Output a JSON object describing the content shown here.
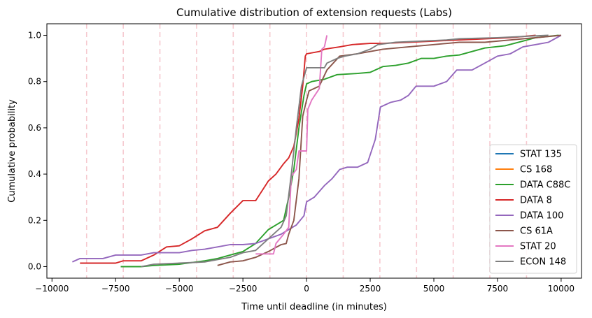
{
  "chart_data": {
    "type": "line",
    "title": "Cumulative distribution of extension requests (Labs)",
    "xlabel": "Time until deadline (in minutes)",
    "ylabel": "Cumulative probability",
    "xlim": [
      -10200,
      10800
    ],
    "ylim": [
      -0.05,
      1.05
    ],
    "xticks": [
      -10000,
      -7500,
      -5000,
      -2500,
      0,
      2500,
      5000,
      7500,
      10000
    ],
    "xtick_labels": [
      "−10000",
      "−7500",
      "−5000",
      "−2500",
      "0",
      "2500",
      "5000",
      "7500",
      "10000"
    ],
    "yticks": [
      0.0,
      0.2,
      0.4,
      0.6,
      0.8,
      1.0
    ],
    "ytick_labels": [
      "0.0",
      "0.2",
      "0.4",
      "0.6",
      "0.8",
      "1.0"
    ],
    "grid": false,
    "legend_position": "lower-right",
    "reference_lines": {
      "x": [
        -8640,
        -7200,
        -5760,
        -4320,
        -2880,
        -1440,
        0,
        1440,
        2880,
        4320,
        5760,
        7200,
        8640
      ],
      "color": "#f6c9cf",
      "style": "dashed"
    },
    "series": [
      {
        "name": "STAT 135",
        "color": "#1f77b4",
        "points": []
      },
      {
        "name": "CS 168",
        "color": "#ff7f0e",
        "points": []
      },
      {
        "name": "DATA C88C",
        "color": "#2ca02c",
        "points": [
          [
            -7300,
            0.0
          ],
          [
            -6500,
            0.0
          ],
          [
            -6000,
            0.005
          ],
          [
            -5000,
            0.01
          ],
          [
            -4000,
            0.025
          ],
          [
            -3500,
            0.035
          ],
          [
            -3000,
            0.05
          ],
          [
            -2500,
            0.065
          ],
          [
            -2000,
            0.1
          ],
          [
            -1500,
            0.16
          ],
          [
            -1200,
            0.18
          ],
          [
            -900,
            0.2
          ],
          [
            -700,
            0.3
          ],
          [
            -500,
            0.42
          ],
          [
            -300,
            0.6
          ],
          [
            -100,
            0.74
          ],
          [
            0,
            0.79
          ],
          [
            200,
            0.8
          ],
          [
            700,
            0.81
          ],
          [
            1200,
            0.83
          ],
          [
            2000,
            0.835
          ],
          [
            2500,
            0.84
          ],
          [
            3000,
            0.865
          ],
          [
            3500,
            0.87
          ],
          [
            4000,
            0.88
          ],
          [
            4500,
            0.9
          ],
          [
            5000,
            0.9
          ],
          [
            5500,
            0.91
          ],
          [
            6000,
            0.915
          ],
          [
            6500,
            0.93
          ],
          [
            7000,
            0.945
          ],
          [
            7800,
            0.955
          ],
          [
            8500,
            0.975
          ],
          [
            9000,
            0.99
          ],
          [
            9900,
            1.0
          ]
        ]
      },
      {
        "name": "DATA 8",
        "color": "#d62728",
        "points": [
          [
            -8900,
            0.015
          ],
          [
            -7500,
            0.015
          ],
          [
            -7200,
            0.025
          ],
          [
            -6500,
            0.025
          ],
          [
            -6000,
            0.05
          ],
          [
            -5500,
            0.085
          ],
          [
            -5000,
            0.09
          ],
          [
            -4500,
            0.12
          ],
          [
            -4000,
            0.155
          ],
          [
            -3500,
            0.17
          ],
          [
            -3000,
            0.23
          ],
          [
            -2500,
            0.285
          ],
          [
            -2000,
            0.285
          ],
          [
            -1500,
            0.37
          ],
          [
            -1200,
            0.4
          ],
          [
            -900,
            0.445
          ],
          [
            -700,
            0.47
          ],
          [
            -500,
            0.52
          ],
          [
            -300,
            0.64
          ],
          [
            -150,
            0.78
          ],
          [
            -50,
            0.91
          ],
          [
            0,
            0.92
          ],
          [
            500,
            0.93
          ],
          [
            700,
            0.94
          ],
          [
            1000,
            0.945
          ],
          [
            1300,
            0.95
          ],
          [
            1800,
            0.96
          ],
          [
            2500,
            0.965
          ],
          [
            3000,
            0.965
          ],
          [
            4000,
            0.97
          ],
          [
            5000,
            0.975
          ],
          [
            6000,
            0.98
          ],
          [
            7000,
            0.985
          ],
          [
            8000,
            0.99
          ],
          [
            9000,
            1.0
          ]
        ]
      },
      {
        "name": "DATA 100",
        "color": "#9467bd",
        "points": [
          [
            -9200,
            0.02
          ],
          [
            -8900,
            0.035
          ],
          [
            -8000,
            0.035
          ],
          [
            -7500,
            0.05
          ],
          [
            -6500,
            0.05
          ],
          [
            -6000,
            0.06
          ],
          [
            -5000,
            0.06
          ],
          [
            -4500,
            0.07
          ],
          [
            -4000,
            0.075
          ],
          [
            -3500,
            0.085
          ],
          [
            -3000,
            0.095
          ],
          [
            -2500,
            0.095
          ],
          [
            -2000,
            0.1
          ],
          [
            -1500,
            0.12
          ],
          [
            -1000,
            0.14
          ],
          [
            -700,
            0.16
          ],
          [
            -400,
            0.18
          ],
          [
            -100,
            0.22
          ],
          [
            0,
            0.28
          ],
          [
            300,
            0.3
          ],
          [
            700,
            0.35
          ],
          [
            1000,
            0.38
          ],
          [
            1300,
            0.42
          ],
          [
            1600,
            0.43
          ],
          [
            2000,
            0.43
          ],
          [
            2400,
            0.45
          ],
          [
            2700,
            0.55
          ],
          [
            2900,
            0.69
          ],
          [
            3300,
            0.71
          ],
          [
            3700,
            0.72
          ],
          [
            4000,
            0.74
          ],
          [
            4300,
            0.78
          ],
          [
            5000,
            0.78
          ],
          [
            5500,
            0.8
          ],
          [
            5900,
            0.85
          ],
          [
            6500,
            0.85
          ],
          [
            7000,
            0.88
          ],
          [
            7500,
            0.91
          ],
          [
            8000,
            0.92
          ],
          [
            8500,
            0.95
          ],
          [
            9000,
            0.96
          ],
          [
            9500,
            0.97
          ],
          [
            10000,
            1.0
          ]
        ]
      },
      {
        "name": "CS 61A",
        "color": "#8c564b",
        "points": [
          [
            -3500,
            0.005
          ],
          [
            -3000,
            0.02
          ],
          [
            -2500,
            0.025
          ],
          [
            -2000,
            0.04
          ],
          [
            -1500,
            0.065
          ],
          [
            -1000,
            0.095
          ],
          [
            -800,
            0.1
          ],
          [
            -700,
            0.14
          ],
          [
            -500,
            0.2
          ],
          [
            -300,
            0.38
          ],
          [
            -150,
            0.65
          ],
          [
            0,
            0.72
          ],
          [
            100,
            0.76
          ],
          [
            500,
            0.78
          ],
          [
            800,
            0.85
          ],
          [
            1300,
            0.91
          ],
          [
            2000,
            0.92
          ],
          [
            2500,
            0.93
          ],
          [
            3000,
            0.94
          ],
          [
            4000,
            0.95
          ],
          [
            5000,
            0.96
          ],
          [
            6000,
            0.97
          ],
          [
            7000,
            0.97
          ],
          [
            8000,
            0.98
          ],
          [
            9000,
            0.99
          ],
          [
            10000,
            1.0
          ]
        ]
      },
      {
        "name": "STAT 20",
        "color": "#e377c2",
        "points": [
          [
            -2000,
            0.055
          ],
          [
            -1300,
            0.055
          ],
          [
            -1200,
            0.1
          ],
          [
            -900,
            0.14
          ],
          [
            -700,
            0.17
          ],
          [
            -600,
            0.39
          ],
          [
            -400,
            0.42
          ],
          [
            -300,
            0.5
          ],
          [
            0,
            0.5
          ],
          [
            50,
            0.68
          ],
          [
            200,
            0.72
          ],
          [
            500,
            0.77
          ],
          [
            600,
            0.94
          ],
          [
            700,
            0.95
          ],
          [
            800,
            1.0
          ]
        ]
      },
      {
        "name": "ECON 148",
        "color": "#7f7f7f",
        "points": [
          [
            -6500,
            0.0
          ],
          [
            -6000,
            0.01
          ],
          [
            -5000,
            0.015
          ],
          [
            -4000,
            0.02
          ],
          [
            -3500,
            0.03
          ],
          [
            -3000,
            0.04
          ],
          [
            -2500,
            0.06
          ],
          [
            -2000,
            0.07
          ],
          [
            -1500,
            0.12
          ],
          [
            -1000,
            0.17
          ],
          [
            -800,
            0.22
          ],
          [
            -600,
            0.4
          ],
          [
            -400,
            0.6
          ],
          [
            -200,
            0.78
          ],
          [
            0,
            0.86
          ],
          [
            700,
            0.86
          ],
          [
            800,
            0.88
          ],
          [
            1200,
            0.9
          ],
          [
            1500,
            0.91
          ],
          [
            2000,
            0.92
          ],
          [
            2500,
            0.94
          ],
          [
            2800,
            0.96
          ],
          [
            3500,
            0.97
          ],
          [
            4500,
            0.975
          ],
          [
            5500,
            0.98
          ],
          [
            6000,
            0.985
          ],
          [
            7500,
            0.99
          ],
          [
            9500,
            1.0
          ]
        ]
      }
    ]
  }
}
